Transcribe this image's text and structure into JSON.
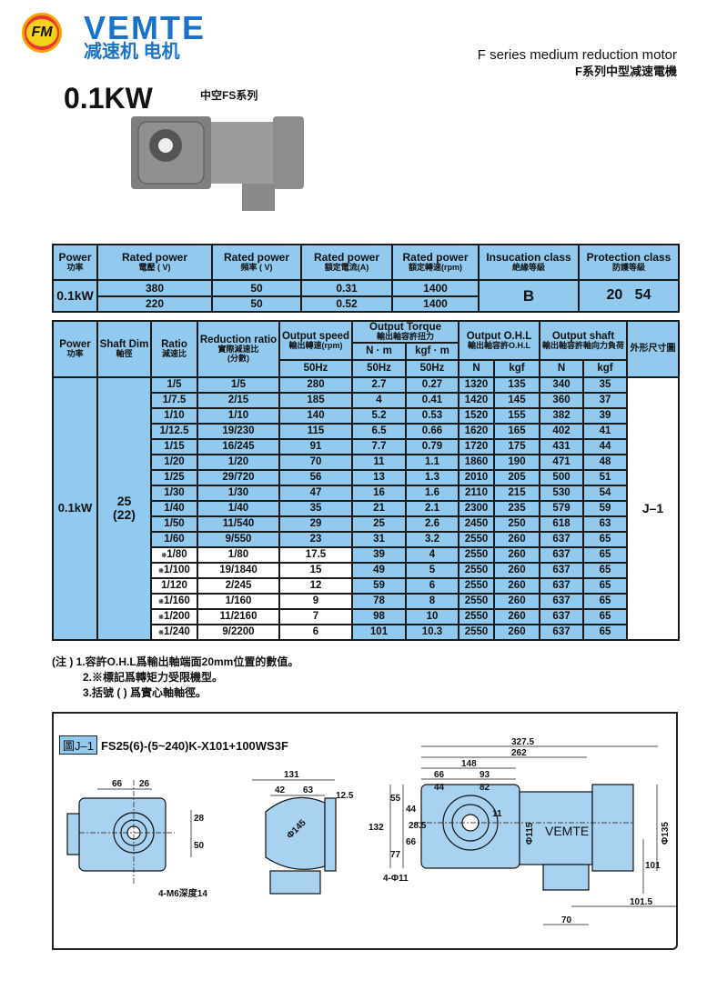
{
  "header": {
    "logo_letters": "FM",
    "brand": "VEMTE",
    "brand_cn": "减速机 电机",
    "series_en": "F series medium reduction motor",
    "series_cn": "F系列中型减速電機",
    "power": "0.1KW",
    "subseries": "中空FS系列"
  },
  "colors": {
    "table_fill": "#92c9ee",
    "brand": "#1a73c8"
  },
  "rated_table": {
    "headers": [
      [
        "Power",
        "功率"
      ],
      [
        "Rated power",
        "電壓 ( V)"
      ],
      [
        "Rated power",
        "頻率 ( V)"
      ],
      [
        "Rated power",
        "額定電流(A)"
      ],
      [
        "Rated power",
        "額定轉速(rpm)"
      ],
      [
        "Insucation class",
        "絶緣等級"
      ],
      [
        "Protection class",
        "防護等級"
      ]
    ],
    "power": "0.1kW",
    "rows": [
      [
        "380",
        "50",
        "0.31",
        "1400"
      ],
      [
        "220",
        "50",
        "0.52",
        "1400"
      ]
    ],
    "insulation": "B",
    "protection": "20   54"
  },
  "spec_table": {
    "headers": {
      "power": [
        "Power",
        "功率"
      ],
      "shaft": [
        "Shaft Dim",
        "軸徑"
      ],
      "ratio": [
        "Ratio",
        "減速比"
      ],
      "reduction": [
        "Reduction ratio",
        "實際減速比",
        "(分數)"
      ],
      "speed": [
        "Output speed",
        "輸出轉速(rpm)"
      ],
      "torque": [
        "Output Torque",
        "輸出軸容許扭力"
      ],
      "ohl": [
        "Output O.H.L",
        "輸出軸容許O.H.L"
      ],
      "shaft_load": [
        "Output shaft",
        "輸出軸容許軸向力負荷"
      ],
      "drawing": "外形尺寸圖",
      "nm": "N · m",
      "kgfm": "kgf · m",
      "hz": "50Hz",
      "n": "N",
      "kgf": "kgf"
    },
    "power": "0.1kW",
    "shaft_dim": "25",
    "shaft_dim_solid": "(22)",
    "drawing_ref": "J–1",
    "rows": [
      {
        "mark": "",
        "ratio": "1/5",
        "red": "1/5",
        "speed": "280",
        "nm": "2.7",
        "kgfm": "0.27",
        "ohl_n": "1320",
        "ohl_kgf": "135",
        "ax_n": "340",
        "ax_kgf": "35"
      },
      {
        "mark": "",
        "ratio": "1/7.5",
        "red": "2/15",
        "speed": "185",
        "nm": "4",
        "kgfm": "0.41",
        "ohl_n": "1420",
        "ohl_kgf": "145",
        "ax_n": "360",
        "ax_kgf": "37"
      },
      {
        "mark": "",
        "ratio": "1/10",
        "red": "1/10",
        "speed": "140",
        "nm": "5.2",
        "kgfm": "0.53",
        "ohl_n": "1520",
        "ohl_kgf": "155",
        "ax_n": "382",
        "ax_kgf": "39"
      },
      {
        "mark": "",
        "ratio": "1/12.5",
        "red": "19/230",
        "speed": "115",
        "nm": "6.5",
        "kgfm": "0.66",
        "ohl_n": "1620",
        "ohl_kgf": "165",
        "ax_n": "402",
        "ax_kgf": "41"
      },
      {
        "mark": "",
        "ratio": "1/15",
        "red": "16/245",
        "speed": "91",
        "nm": "7.7",
        "kgfm": "0.79",
        "ohl_n": "1720",
        "ohl_kgf": "175",
        "ax_n": "431",
        "ax_kgf": "44"
      },
      {
        "mark": "",
        "ratio": "1/20",
        "red": "1/20",
        "speed": "70",
        "nm": "11",
        "kgfm": "1.1",
        "ohl_n": "1860",
        "ohl_kgf": "190",
        "ax_n": "471",
        "ax_kgf": "48"
      },
      {
        "mark": "",
        "ratio": "1/25",
        "red": "29/720",
        "speed": "56",
        "nm": "13",
        "kgfm": "1.3",
        "ohl_n": "2010",
        "ohl_kgf": "205",
        "ax_n": "500",
        "ax_kgf": "51"
      },
      {
        "mark": "",
        "ratio": "1/30",
        "red": "1/30",
        "speed": "47",
        "nm": "16",
        "kgfm": "1.6",
        "ohl_n": "2110",
        "ohl_kgf": "215",
        "ax_n": "530",
        "ax_kgf": "54"
      },
      {
        "mark": "",
        "ratio": "1/40",
        "red": "1/40",
        "speed": "35",
        "nm": "21",
        "kgfm": "2.1",
        "ohl_n": "2300",
        "ohl_kgf": "235",
        "ax_n": "579",
        "ax_kgf": "59"
      },
      {
        "mark": "",
        "ratio": "1/50",
        "red": "11/540",
        "speed": "29",
        "nm": "25",
        "kgfm": "2.6",
        "ohl_n": "2450",
        "ohl_kgf": "250",
        "ax_n": "618",
        "ax_kgf": "63"
      },
      {
        "mark": "",
        "ratio": "1/60",
        "red": "9/550",
        "speed": "23",
        "nm": "31",
        "kgfm": "3.2",
        "ohl_n": "2550",
        "ohl_kgf": "260",
        "ax_n": "637",
        "ax_kgf": "65"
      },
      {
        "mark": "※",
        "ratio": "1/80",
        "red": "1/80",
        "speed": "17.5",
        "nm": "39",
        "kgfm": "4",
        "ohl_n": "2550",
        "ohl_kgf": "260",
        "ax_n": "637",
        "ax_kgf": "65"
      },
      {
        "mark": "※",
        "ratio": "1/100",
        "red": "19/1840",
        "speed": "15",
        "nm": "49",
        "kgfm": "5",
        "ohl_n": "2550",
        "ohl_kgf": "260",
        "ax_n": "637",
        "ax_kgf": "65"
      },
      {
        "mark": "",
        "ratio": "1/120",
        "red": "2/245",
        "speed": "12",
        "nm": "59",
        "kgfm": "6",
        "ohl_n": "2550",
        "ohl_kgf": "260",
        "ax_n": "637",
        "ax_kgf": "65"
      },
      {
        "mark": "※",
        "ratio": "1/160",
        "red": "1/160",
        "speed": "9",
        "nm": "78",
        "kgfm": "8",
        "ohl_n": "2550",
        "ohl_kgf": "260",
        "ax_n": "637",
        "ax_kgf": "65"
      },
      {
        "mark": "※",
        "ratio": "1/200",
        "red": "11/2160",
        "speed": "7",
        "nm": "98",
        "kgfm": "10",
        "ohl_n": "2550",
        "ohl_kgf": "260",
        "ax_n": "637",
        "ax_kgf": "65"
      },
      {
        "mark": "※",
        "ratio": "1/240",
        "red": "9/2200",
        "speed": "6",
        "nm": "101",
        "kgfm": "10.3",
        "ohl_n": "2550",
        "ohl_kgf": "260",
        "ax_n": "637",
        "ax_kgf": "65"
      }
    ]
  },
  "notes": [
    "(注 ) 1.容許O.H.L爲輸出軸端面20mm位置的數值。",
    "2.※標記爲轉矩力受限機型。",
    "3.括號 ( ) 爲實心軸軸徑。"
  ],
  "drawing": {
    "tag": "圖J–1",
    "model": "FS25(6)-(5~240)K-X101+100WS3F",
    "motor_label": "VEMTE",
    "front": {
      "d1": "66",
      "d2": "26",
      "d3": "28",
      "d4": "50",
      "hole": "4-M6深度14"
    },
    "side": {
      "d1": "131",
      "d2": "42",
      "d3": "63",
      "d4": "12.5",
      "dia": "Φ145"
    },
    "main": {
      "w1": "327.5",
      "w2": "262",
      "w3": "148",
      "w4": "66",
      "w5": "93",
      "w6": "44",
      "w7": "82",
      "h1": "132",
      "h2": "55",
      "h3": "77",
      "h4": "44",
      "h5": "28.5",
      "h6": "66",
      "h7": "11",
      "dia1": "Φ115",
      "dia2": "Φ135",
      "h8": "101",
      "w8": "101.5",
      "w9": "70",
      "holes": "4-Φ11"
    }
  }
}
